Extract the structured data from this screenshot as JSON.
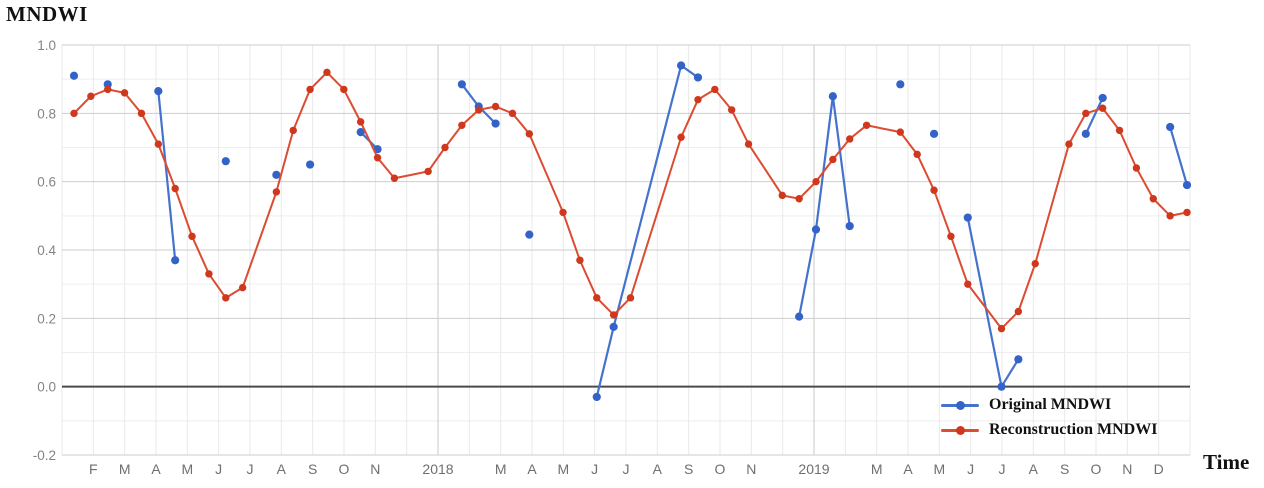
{
  "chart_data": {
    "type": "line",
    "title": "MNDWI",
    "xlabel": "Time",
    "ylabel": "MNDWI",
    "ylim": [
      -0.2,
      1.0
    ],
    "y_ticks": [
      1.0,
      0.8,
      0.6,
      0.4,
      0.2,
      0.0,
      -0.2
    ],
    "y_tick_labels": [
      "1.0",
      "0.8",
      "0.6",
      "0.4",
      "0.2",
      "0.0",
      "-0.2"
    ],
    "minor_y_step": 0.1,
    "months_total": 36,
    "x_tick_labels": [
      {
        "m": 1,
        "t": "F"
      },
      {
        "m": 2,
        "t": "M"
      },
      {
        "m": 3,
        "t": "A"
      },
      {
        "m": 4,
        "t": "M"
      },
      {
        "m": 5,
        "t": "J"
      },
      {
        "m": 6,
        "t": "J"
      },
      {
        "m": 7,
        "t": "A"
      },
      {
        "m": 8,
        "t": "S"
      },
      {
        "m": 9,
        "t": "O"
      },
      {
        "m": 10,
        "t": "N"
      },
      {
        "m": 12,
        "t": "2018"
      },
      {
        "m": 14,
        "t": "M"
      },
      {
        "m": 15,
        "t": "A"
      },
      {
        "m": 16,
        "t": "M"
      },
      {
        "m": 17,
        "t": "J"
      },
      {
        "m": 18,
        "t": "J"
      },
      {
        "m": 19,
        "t": "A"
      },
      {
        "m": 20,
        "t": "S"
      },
      {
        "m": 21,
        "t": "O"
      },
      {
        "m": 22,
        "t": "N"
      },
      {
        "m": 24,
        "t": "2019"
      },
      {
        "m": 26,
        "t": "M"
      },
      {
        "m": 27,
        "t": "A"
      },
      {
        "m": 28,
        "t": "M"
      },
      {
        "m": 29,
        "t": "J"
      },
      {
        "m": 30,
        "t": "J"
      },
      {
        "m": 31,
        "t": "A"
      },
      {
        "m": 32,
        "t": "S"
      },
      {
        "m": 33,
        "t": "O"
      },
      {
        "m": 34,
        "t": "N"
      },
      {
        "m": 35,
        "t": "D"
      }
    ],
    "n_samples": 67,
    "grid": {
      "minor_color": "#ededed",
      "month_color": "#e9e9e9",
      "year_color": "#c8c8c8",
      "major_color": "#cdcdcd",
      "zero_color": "#4a4a4a"
    },
    "series": [
      {
        "name": "Original MNDWI",
        "type": "scatter-with-segments",
        "color": "#4472CC",
        "dot_color": "#3362C8",
        "runs": [
          [
            [
              0,
              0.91
            ]
          ],
          [
            [
              2,
              0.885
            ]
          ],
          [
            [
              5,
              0.865
            ],
            [
              6,
              0.37
            ]
          ],
          [
            [
              9,
              0.66
            ]
          ],
          [
            [
              12,
              0.62
            ]
          ],
          [
            [
              14,
              0.65
            ]
          ],
          [
            [
              17,
              0.745
            ],
            [
              18,
              0.695
            ]
          ],
          [
            [
              23,
              0.885
            ],
            [
              24,
              0.82
            ],
            [
              25,
              0.77
            ]
          ],
          [
            [
              27,
              0.445
            ]
          ],
          [
            [
              31,
              -0.03
            ],
            [
              32,
              0.175
            ],
            [
              36,
              0.94
            ],
            [
              37,
              0.905
            ]
          ],
          [
            [
              43,
              0.205
            ],
            [
              44,
              0.46
            ],
            [
              45,
              0.85
            ],
            [
              46,
              0.47
            ]
          ],
          [
            [
              49,
              0.885
            ]
          ],
          [
            [
              51,
              0.74
            ]
          ],
          [
            [
              53,
              0.495
            ],
            [
              55,
              0.0
            ],
            [
              56,
              0.08
            ]
          ],
          [
            [
              60,
              0.74
            ],
            [
              61,
              0.845
            ]
          ],
          [
            [
              65,
              0.76
            ],
            [
              66,
              0.59
            ]
          ]
        ]
      },
      {
        "name": "Reconstruction MNDWI",
        "type": "line",
        "color": "#DB4C32",
        "dot_color": "#CF381C",
        "values": [
          0.8,
          0.85,
          0.87,
          0.86,
          0.8,
          0.71,
          0.58,
          0.44,
          0.33,
          0.26,
          0.29,
          0.43,
          0.57,
          0.75,
          0.87,
          0.92,
          0.87,
          0.775,
          0.67,
          0.61,
          0.62,
          0.63,
          0.7,
          0.765,
          0.81,
          0.82,
          0.8,
          0.74,
          0.625,
          0.51,
          0.37,
          0.26,
          0.21,
          0.26,
          0.417,
          0.573,
          0.73,
          0.84,
          0.87,
          0.81,
          0.71,
          0.635,
          0.56,
          0.55,
          0.6,
          0.665,
          0.725,
          0.765,
          0.755,
          0.745,
          0.68,
          0.575,
          0.44,
          0.3,
          0.235,
          0.17,
          0.22,
          0.36,
          0.535,
          0.71,
          0.8,
          0.815,
          0.75,
          0.64,
          0.55,
          0.5,
          0.51
        ],
        "no_dot_indices": [
          11,
          20,
          28,
          34,
          35,
          41,
          48,
          54,
          58
        ]
      }
    ]
  }
}
